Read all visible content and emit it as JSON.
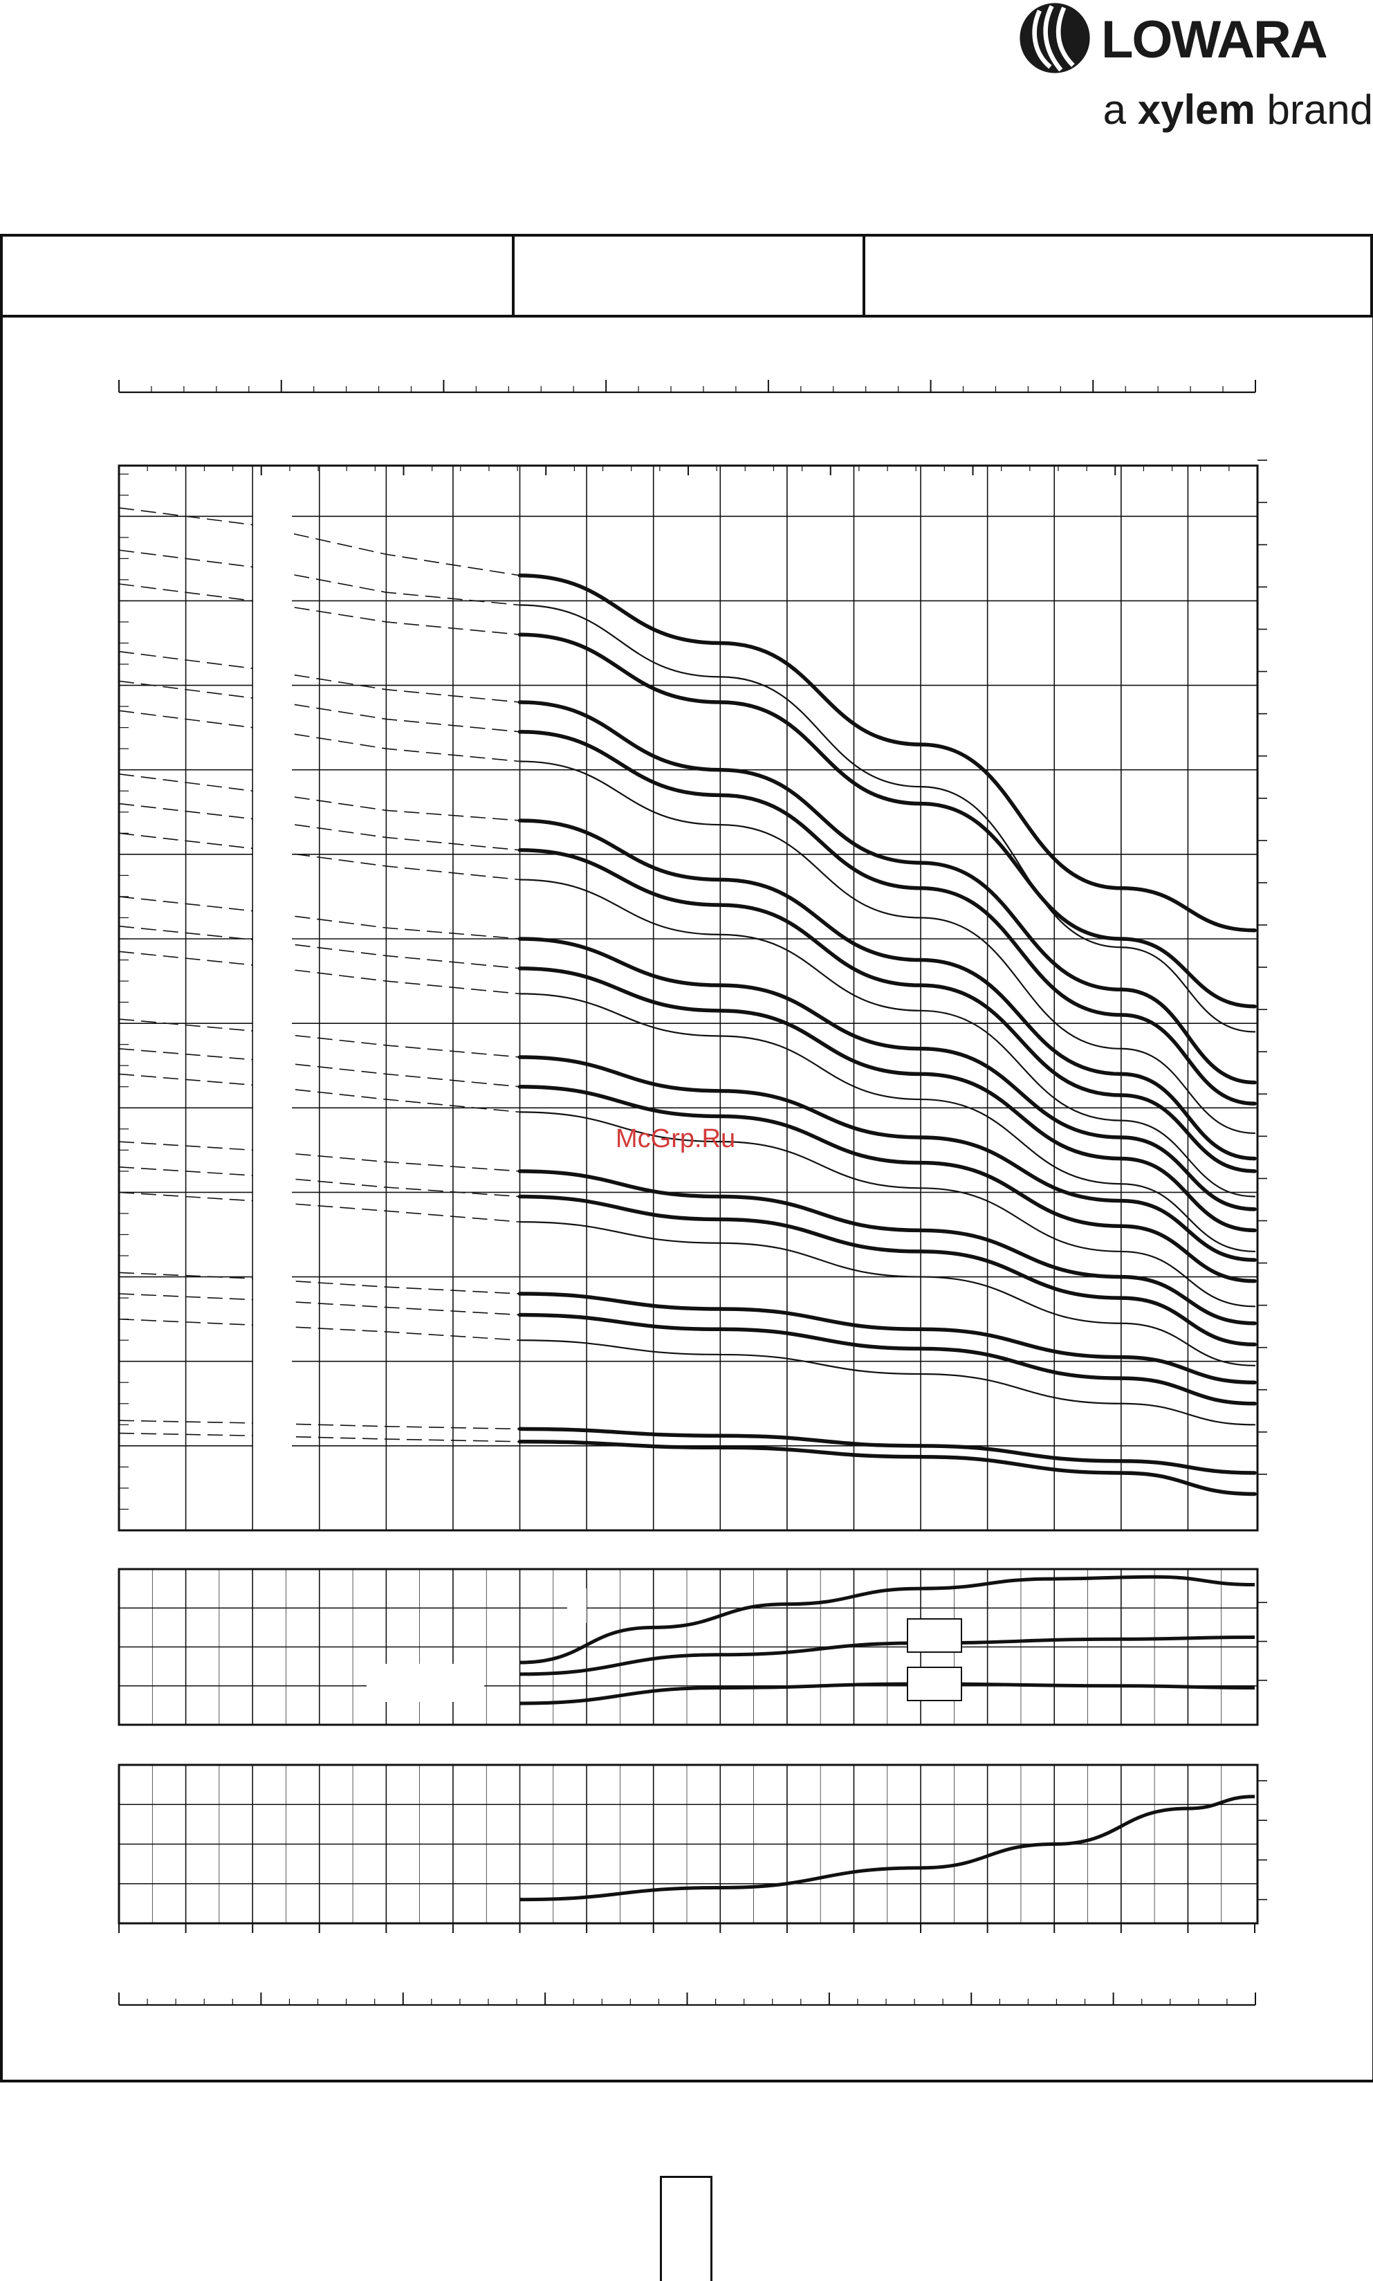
{
  "brand": {
    "name": "LOWARA",
    "tagline_prefix": "a",
    "tagline_brand": "xylem",
    "tagline_suffix": "brand"
  },
  "watermark": "McGrp.Ru",
  "colors": {
    "ink": "#111111",
    "watermark": "#d23a3a"
  },
  "icons": {
    "logo": "lowara-swirl-icon"
  },
  "chart_data": [
    {
      "type": "line",
      "panel": "head",
      "title": "",
      "xlabel": "",
      "ylabel": "",
      "xlim": [
        0,
        17
      ],
      "ylim": [
        0,
        12.6
      ],
      "grid": true,
      "x_operating_range": [
        6,
        17
      ],
      "series": [
        {
          "weight": "bold",
          "values": [
            [
              0,
              12.1
            ],
            [
              2,
              11.9
            ],
            [
              4,
              11.55
            ],
            [
              6,
              11.3
            ],
            [
              9,
              10.5
            ],
            [
              12,
              9.3
            ],
            [
              15,
              7.6
            ],
            [
              17,
              7.1
            ]
          ]
        },
        {
          "weight": "thin",
          "values": [
            [
              0,
              11.6
            ],
            [
              2,
              11.4
            ],
            [
              4,
              11.1
            ],
            [
              6,
              10.95
            ],
            [
              9,
              10.1
            ],
            [
              12,
              8.8
            ],
            [
              15,
              6.9
            ],
            [
              17,
              5.9
            ]
          ]
        },
        {
          "weight": "bold",
          "values": [
            [
              0,
              11.2
            ],
            [
              2,
              11.0
            ],
            [
              4,
              10.75
            ],
            [
              6,
              10.6
            ],
            [
              9,
              9.8
            ],
            [
              12,
              8.6
            ],
            [
              15,
              7.0
            ],
            [
              17,
              6.2
            ]
          ]
        },
        {
          "weight": "bold",
          "values": [
            [
              0,
              10.4
            ],
            [
              2,
              10.2
            ],
            [
              4,
              9.95
            ],
            [
              6,
              9.8
            ],
            [
              9,
              9.0
            ],
            [
              12,
              7.9
            ],
            [
              15,
              6.4
            ],
            [
              17,
              5.3
            ]
          ]
        },
        {
          "weight": "bold",
          "values": [
            [
              0,
              10.05
            ],
            [
              2,
              9.85
            ],
            [
              4,
              9.6
            ],
            [
              6,
              9.45
            ],
            [
              9,
              8.7
            ],
            [
              12,
              7.6
            ],
            [
              15,
              6.1
            ],
            [
              17,
              5.05
            ]
          ]
        },
        {
          "weight": "thin",
          "values": [
            [
              0,
              9.7
            ],
            [
              2,
              9.5
            ],
            [
              4,
              9.25
            ],
            [
              6,
              9.1
            ],
            [
              9,
              8.35
            ],
            [
              12,
              7.25
            ],
            [
              15,
              5.7
            ],
            [
              17,
              4.7
            ]
          ]
        },
        {
          "weight": "bold",
          "values": [
            [
              0,
              8.95
            ],
            [
              2,
              8.75
            ],
            [
              4,
              8.52
            ],
            [
              6,
              8.4
            ],
            [
              9,
              7.7
            ],
            [
              12,
              6.75
            ],
            [
              15,
              5.4
            ],
            [
              17,
              4.4
            ]
          ]
        },
        {
          "weight": "bold",
          "values": [
            [
              0,
              8.6
            ],
            [
              2,
              8.42
            ],
            [
              4,
              8.2
            ],
            [
              6,
              8.05
            ],
            [
              9,
              7.4
            ],
            [
              12,
              6.45
            ],
            [
              15,
              5.15
            ],
            [
              17,
              4.25
            ]
          ]
        },
        {
          "weight": "thin",
          "values": [
            [
              0,
              8.25
            ],
            [
              2,
              8.07
            ],
            [
              4,
              7.86
            ],
            [
              6,
              7.7
            ],
            [
              9,
              7.05
            ],
            [
              12,
              6.15
            ],
            [
              15,
              4.85
            ],
            [
              17,
              3.95
            ]
          ]
        },
        {
          "weight": "bold",
          "values": [
            [
              0,
              7.5
            ],
            [
              2,
              7.33
            ],
            [
              4,
              7.13
            ],
            [
              6,
              7.0
            ],
            [
              9,
              6.45
            ],
            [
              12,
              5.7
            ],
            [
              15,
              4.65
            ],
            [
              17,
              3.8
            ]
          ]
        },
        {
          "weight": "bold",
          "values": [
            [
              0,
              7.15
            ],
            [
              2,
              6.99
            ],
            [
              4,
              6.8
            ],
            [
              6,
              6.65
            ],
            [
              9,
              6.15
            ],
            [
              12,
              5.4
            ],
            [
              15,
              4.4
            ],
            [
              17,
              3.55
            ]
          ]
        },
        {
          "weight": "thin",
          "values": [
            [
              0,
              6.85
            ],
            [
              2,
              6.69
            ],
            [
              4,
              6.5
            ],
            [
              6,
              6.35
            ],
            [
              9,
              5.85
            ],
            [
              12,
              5.1
            ],
            [
              15,
              4.1
            ],
            [
              17,
              3.3
            ]
          ]
        },
        {
          "weight": "bold",
          "values": [
            [
              0,
              6.05
            ],
            [
              2,
              5.91
            ],
            [
              4,
              5.74
            ],
            [
              6,
              5.6
            ],
            [
              9,
              5.2
            ],
            [
              12,
              4.65
            ],
            [
              15,
              3.9
            ],
            [
              17,
              3.2
            ]
          ]
        },
        {
          "weight": "bold",
          "values": [
            [
              0,
              5.7
            ],
            [
              2,
              5.57
            ],
            [
              4,
              5.4
            ],
            [
              6,
              5.25
            ],
            [
              9,
              4.9
            ],
            [
              12,
              4.35
            ],
            [
              15,
              3.6
            ],
            [
              17,
              2.95
            ]
          ]
        },
        {
          "weight": "thin",
          "values": [
            [
              0,
              5.4
            ],
            [
              2,
              5.27
            ],
            [
              4,
              5.1
            ],
            [
              6,
              4.95
            ],
            [
              9,
              4.6
            ],
            [
              12,
              4.05
            ],
            [
              15,
              3.3
            ],
            [
              17,
              2.65
            ]
          ]
        },
        {
          "weight": "bold",
          "values": [
            [
              0,
              4.6
            ],
            [
              2,
              4.5
            ],
            [
              4,
              4.36
            ],
            [
              6,
              4.25
            ],
            [
              9,
              3.95
            ],
            [
              12,
              3.55
            ],
            [
              15,
              3.0
            ],
            [
              17,
              2.45
            ]
          ]
        },
        {
          "weight": "bold",
          "values": [
            [
              0,
              4.3
            ],
            [
              2,
              4.2
            ],
            [
              4,
              4.06
            ],
            [
              6,
              3.95
            ],
            [
              9,
              3.68
            ],
            [
              12,
              3.3
            ],
            [
              15,
              2.75
            ],
            [
              17,
              2.2
            ]
          ]
        },
        {
          "weight": "thin",
          "values": [
            [
              0,
              4.0
            ],
            [
              2,
              3.9
            ],
            [
              4,
              3.78
            ],
            [
              6,
              3.65
            ],
            [
              9,
              3.4
            ],
            [
              12,
              3.0
            ],
            [
              15,
              2.45
            ],
            [
              17,
              1.95
            ]
          ]
        },
        {
          "weight": "bold",
          "values": [
            [
              0,
              3.05
            ],
            [
              2,
              2.98
            ],
            [
              4,
              2.88
            ],
            [
              6,
              2.8
            ],
            [
              9,
              2.62
            ],
            [
              12,
              2.38
            ],
            [
              15,
              2.05
            ],
            [
              17,
              1.75
            ]
          ]
        },
        {
          "weight": "bold",
          "values": [
            [
              0,
              2.8
            ],
            [
              2,
              2.73
            ],
            [
              4,
              2.64
            ],
            [
              6,
              2.55
            ],
            [
              9,
              2.38
            ],
            [
              12,
              2.15
            ],
            [
              15,
              1.8
            ],
            [
              17,
              1.5
            ]
          ]
        },
        {
          "weight": "thin",
          "values": [
            [
              0,
              2.5
            ],
            [
              2,
              2.43
            ],
            [
              4,
              2.35
            ],
            [
              6,
              2.25
            ],
            [
              9,
              2.08
            ],
            [
              12,
              1.85
            ],
            [
              15,
              1.5
            ],
            [
              17,
              1.25
            ]
          ]
        },
        {
          "weight": "bold",
          "values": [
            [
              0,
              1.3
            ],
            [
              2,
              1.27
            ],
            [
              4,
              1.23
            ],
            [
              6,
              1.2
            ],
            [
              9,
              1.12
            ],
            [
              12,
              1.0
            ],
            [
              15,
              0.82
            ],
            [
              17,
              0.68
            ]
          ]
        },
        {
          "weight": "bold",
          "values": [
            [
              0,
              1.15
            ],
            [
              2,
              1.12
            ],
            [
              4,
              1.08
            ],
            [
              6,
              1.05
            ],
            [
              9,
              0.98
            ],
            [
              12,
              0.87
            ],
            [
              15,
              0.68
            ],
            [
              17,
              0.43
            ]
          ]
        }
      ]
    },
    {
      "type": "line",
      "panel": "efficiency",
      "title": "",
      "xlabel": "",
      "ylabel": "",
      "xlim": [
        0,
        17
      ],
      "ylim": [
        0,
        4
      ],
      "grid": true,
      "series": [
        {
          "values": [
            [
              6,
              1.6
            ],
            [
              8,
              2.5
            ],
            [
              10,
              3.1
            ],
            [
              12,
              3.5
            ],
            [
              14,
              3.75
            ],
            [
              15.5,
              3.8
            ],
            [
              17,
              3.6
            ]
          ]
        },
        {
          "values": [
            [
              6,
              1.3
            ],
            [
              9,
              1.8
            ],
            [
              12,
              2.1
            ],
            [
              15,
              2.2
            ],
            [
              17,
              2.25
            ]
          ]
        },
        {
          "values": [
            [
              6,
              0.55
            ],
            [
              9,
              0.95
            ],
            [
              12,
              1.05
            ],
            [
              15,
              1.0
            ],
            [
              17,
              0.95
            ]
          ]
        }
      ]
    },
    {
      "type": "line",
      "panel": "npsh",
      "title": "",
      "xlabel": "",
      "ylabel": "",
      "xlim": [
        0,
        17
      ],
      "ylim": [
        0,
        4
      ],
      "grid": true,
      "series": [
        {
          "values": [
            [
              6,
              0.6
            ],
            [
              9,
              0.9
            ],
            [
              12,
              1.4
            ],
            [
              14,
              2.0
            ],
            [
              16,
              2.9
            ],
            [
              17,
              3.2
            ]
          ]
        }
      ]
    }
  ]
}
